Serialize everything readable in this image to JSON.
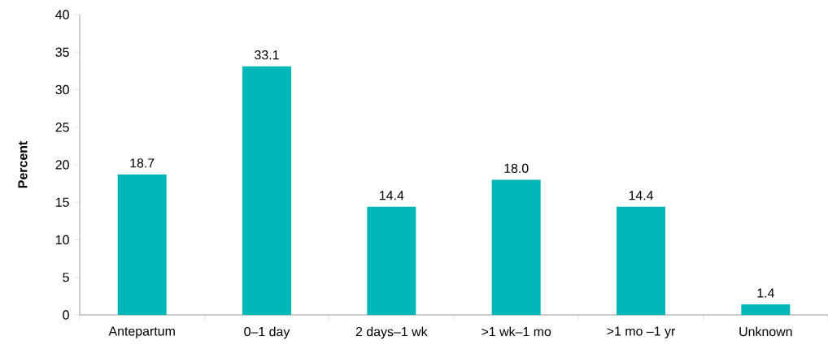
{
  "chart_data": {
    "type": "bar",
    "ylabel": "Percent",
    "categories": [
      "Antepartum",
      "0–1 day",
      "2 days–1 wk",
      ">1 wk–1 mo",
      ">1 mo –1 yr",
      "Unknown"
    ],
    "values": [
      18.7,
      33.1,
      14.4,
      18.0,
      14.4,
      1.4
    ],
    "color": "#00b7b8",
    "ylim": [
      0,
      40
    ],
    "yticks": [
      0,
      5,
      10,
      15,
      20,
      25,
      30,
      35,
      40
    ],
    "value_labels": [
      "18.7",
      "33.1",
      "14.4",
      "18.0",
      "14.4",
      "1.4"
    ],
    "grid": false
  }
}
